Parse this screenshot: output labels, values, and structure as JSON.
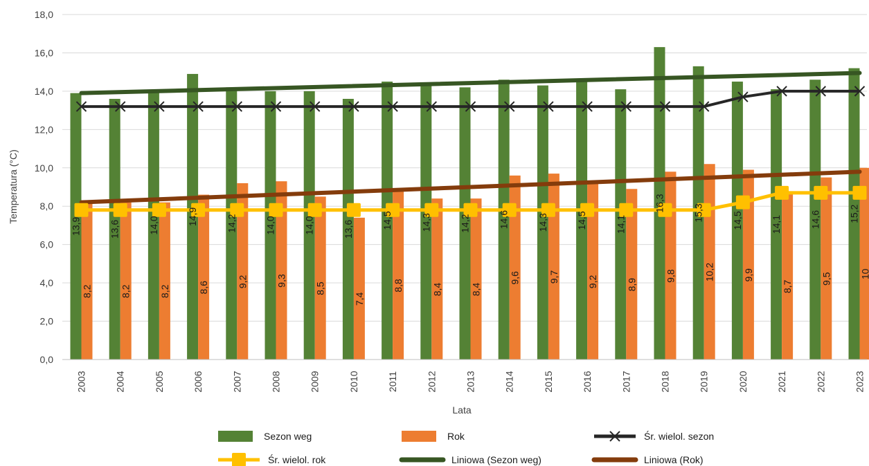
{
  "chart_data": {
    "type": "bar",
    "xlabel": "Lata",
    "ylabel": "Temperatura (°C)",
    "ylim": [
      0,
      18
    ],
    "ytick_labels": [
      "0,0",
      "2,0",
      "4,0",
      "6,0",
      "8,0",
      "10,0",
      "12,0",
      "14,0",
      "16,0",
      "18,0"
    ],
    "grid": true,
    "legend_position": "bottom",
    "categories": [
      "2003",
      "2004",
      "2005",
      "2006",
      "2007",
      "2008",
      "2009",
      "2010",
      "2011",
      "2012",
      "2013",
      "2014",
      "2015",
      "2016",
      "2017",
      "2018",
      "2019",
      "2020",
      "2021",
      "2022",
      "2023"
    ],
    "bar_series": [
      {
        "name": "Sezon weg",
        "color": "#548235",
        "values": [
          13.9,
          13.6,
          14.0,
          14.9,
          14.2,
          14.0,
          14.0,
          13.6,
          14.5,
          14.3,
          14.2,
          14.6,
          14.3,
          14.5,
          14.1,
          16.3,
          15.3,
          14.5,
          14.1,
          14.6,
          15.2
        ],
        "labels": [
          "13,9",
          "13,6",
          "14,0",
          "14,9",
          "14,2",
          "14,0",
          "14,0",
          "13,6",
          "14,5",
          "14,3",
          "14,2",
          "14,6",
          "14,3",
          "14,5",
          "14,1",
          "16,3",
          "15,3",
          "14,5",
          "14,1",
          "14,6",
          "15,2"
        ]
      },
      {
        "name": "Rok",
        "color": "#ED7D31",
        "values": [
          8.2,
          8.2,
          8.2,
          8.6,
          9.2,
          9.3,
          8.5,
          7.4,
          8.8,
          8.4,
          8.4,
          9.6,
          9.7,
          9.2,
          8.9,
          9.8,
          10.2,
          9.9,
          8.7,
          9.5,
          10.0
        ],
        "labels": [
          "8,2",
          "8,2",
          "8,2",
          "8,6",
          "9,2",
          "9,3",
          "8,5",
          "7,4",
          "8,8",
          "8,4",
          "8,4",
          "9,6",
          "9,7",
          "9,2",
          "8,9",
          "9,8",
          "10,2",
          "9,9",
          "8,7",
          "9,5",
          "10"
        ]
      }
    ],
    "line_series": [
      {
        "name": "Śr. wielol. sezon",
        "color": "#262626",
        "marker": "x",
        "values": [
          13.2,
          13.2,
          13.2,
          13.2,
          13.2,
          13.2,
          13.2,
          13.2,
          13.2,
          13.2,
          13.2,
          13.2,
          13.2,
          13.2,
          13.2,
          13.2,
          13.2,
          13.7,
          14.0,
          14.0,
          14.0
        ]
      },
      {
        "name": "Śr. wielol. rok",
        "color": "#FFC000",
        "marker": "square",
        "values": [
          7.8,
          7.8,
          7.8,
          7.8,
          7.8,
          7.8,
          7.8,
          7.8,
          7.8,
          7.8,
          7.8,
          7.8,
          7.8,
          7.8,
          7.8,
          7.8,
          7.8,
          8.2,
          8.7,
          8.7,
          8.7
        ]
      }
    ],
    "trend_series": [
      {
        "name": "Liniowa (Sezon weg)",
        "color": "#375623",
        "start": 13.9,
        "end": 14.95
      },
      {
        "name": "Liniowa (Rok)",
        "color": "#843C0C",
        "start": 8.2,
        "end": 9.8
      }
    ],
    "legend": [
      {
        "label": "Sezon weg",
        "kind": "bar",
        "color": "#548235"
      },
      {
        "label": "Rok",
        "kind": "bar",
        "color": "#ED7D31"
      },
      {
        "label": "Śr. wielol. sezon",
        "kind": "line-x",
        "color": "#262626"
      },
      {
        "label": "Śr. wielol. rok",
        "kind": "line-square",
        "color": "#FFC000"
      },
      {
        "label": "Liniowa (Sezon weg)",
        "kind": "thick-line",
        "color": "#375623"
      },
      {
        "label": "Liniowa (Rok)",
        "kind": "thick-line",
        "color": "#843C0C"
      }
    ]
  }
}
